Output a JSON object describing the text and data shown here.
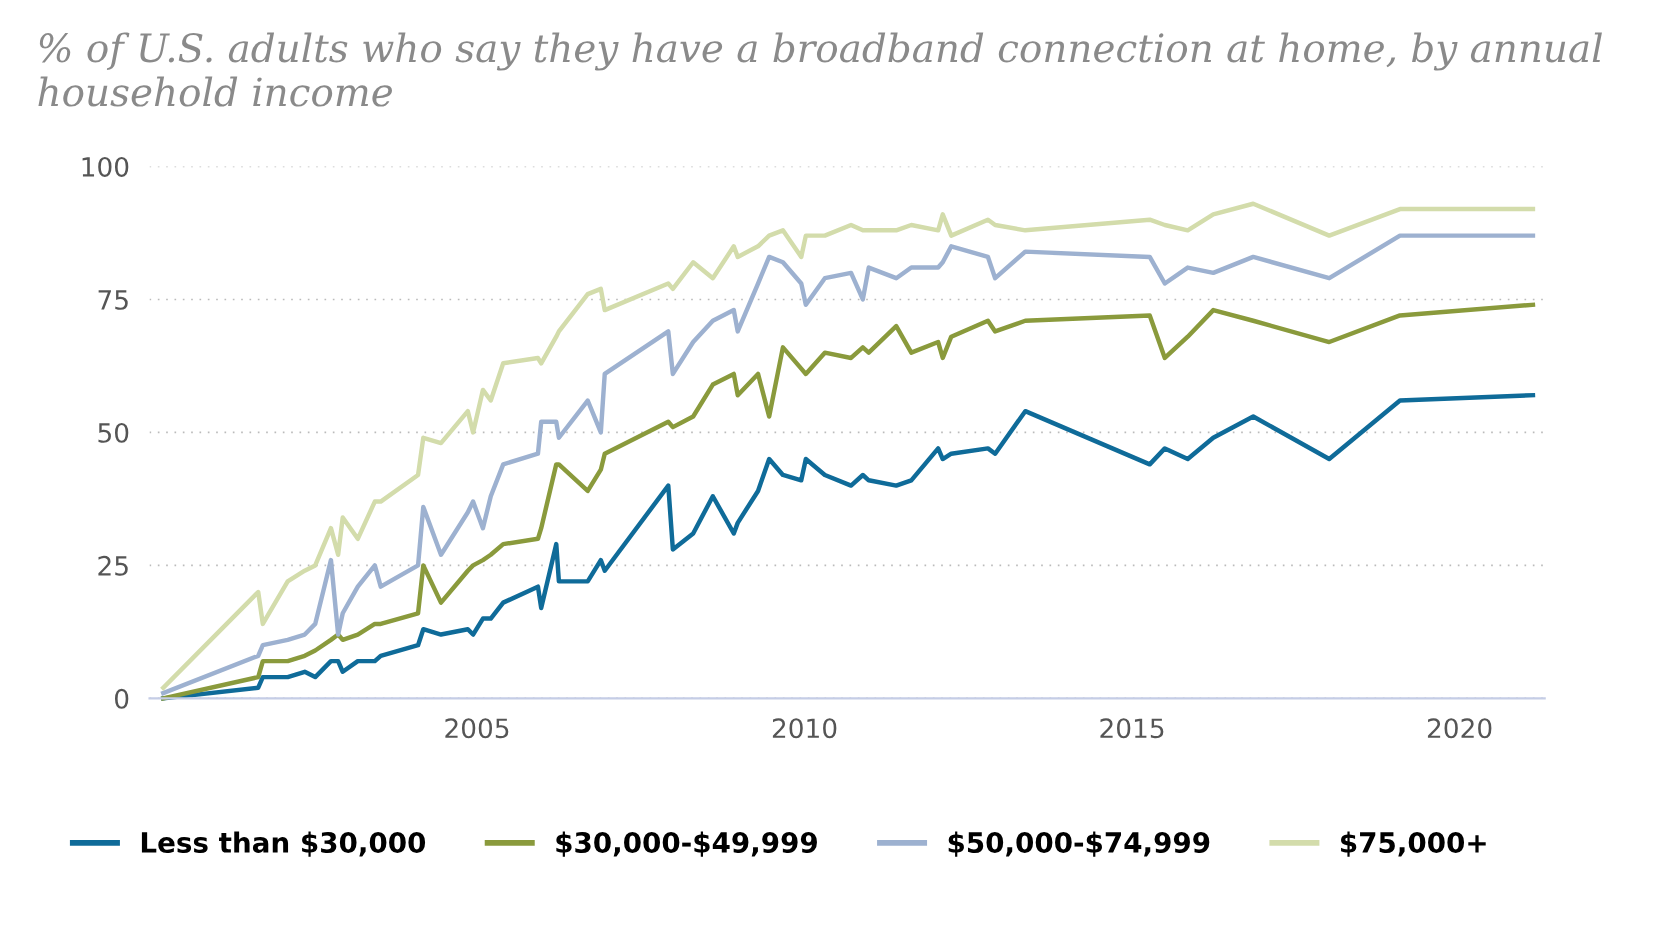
{
  "chart_data": {
    "type": "line",
    "title": "% of U.S. adults who say they have a broadband connection at home, by annual household income",
    "x": [
      2000.21,
      2001.66,
      2001.73,
      2002.11,
      2002.37,
      2002.53,
      2002.77,
      2002.88,
      2002.95,
      2003.18,
      2003.44,
      2003.53,
      2004.1,
      2004.18,
      2004.45,
      2004.86,
      2004.94,
      2005.09,
      2005.21,
      2005.4,
      2005.93,
      2005.98,
      2006.21,
      2006.25,
      2006.69,
      2006.89,
      2006.95,
      2007.92,
      2007.99,
      2008.3,
      2008.6,
      2008.92,
      2008.98,
      2009.29,
      2009.46,
      2009.67,
      2009.95,
      2010.02,
      2010.31,
      2010.71,
      2010.89,
      2010.98,
      2011.4,
      2011.63,
      2012.04,
      2012.11,
      2012.24,
      2012.8,
      2012.91,
      2013.37,
      2015.27,
      2015.5,
      2015.85,
      2016.24,
      2016.85,
      2018.01,
      2019.09,
      2021.12
    ],
    "series": [
      {
        "name": "Less than $30,000",
        "color": "#0f6b99",
        "values": [
          0,
          2,
          4,
          4,
          5,
          4,
          7,
          7,
          5,
          7,
          7,
          8,
          10,
          13,
          12,
          13,
          12,
          15,
          15,
          18,
          21,
          17,
          29,
          22,
          22,
          26,
          24,
          40,
          28,
          31,
          38,
          31,
          33,
          39,
          45,
          42,
          41,
          45,
          42,
          40,
          42,
          41,
          40,
          41,
          47,
          45,
          46,
          47,
          46,
          54,
          44,
          47,
          45,
          49,
          53,
          45,
          56,
          57
        ]
      },
      {
        "name": "$30,000-$49,999",
        "color": "#8a9a3c",
        "values": [
          0,
          4,
          7,
          7,
          8,
          9,
          11,
          12,
          11,
          12,
          14,
          14,
          16,
          25,
          18,
          24,
          25,
          26,
          27,
          29,
          30,
          32,
          44,
          44,
          39,
          43,
          46,
          52,
          51,
          53,
          59,
          61,
          57,
          61,
          53,
          66,
          62,
          61,
          65,
          64,
          66,
          65,
          70,
          65,
          67,
          64,
          68,
          71,
          69,
          71,
          72,
          64,
          68,
          73,
          71,
          67,
          72,
          74
        ]
      },
      {
        "name": "$50,000-$74,999",
        "color": "#9db1d0",
        "values": [
          1,
          8,
          10,
          11,
          12,
          14,
          26,
          12,
          16,
          21,
          25,
          21,
          25,
          36,
          27,
          35,
          37,
          32,
          38,
          44,
          46,
          52,
          52,
          49,
          56,
          50,
          61,
          69,
          61,
          67,
          71,
          73,
          69,
          78,
          83,
          82,
          78,
          74,
          79,
          80,
          75,
          81,
          79,
          81,
          81,
          82,
          85,
          83,
          79,
          84,
          83,
          78,
          81,
          80,
          83,
          79,
          87,
          87
        ]
      },
      {
        "name": "$75,000+",
        "color": "#d3dcab",
        "values": [
          2,
          20,
          14,
          22,
          24,
          25,
          32,
          27,
          34,
          30,
          37,
          37,
          42,
          49,
          48,
          54,
          50,
          58,
          56,
          63,
          64,
          63,
          68,
          69,
          76,
          77,
          73,
          78,
          77,
          82,
          79,
          85,
          83,
          85,
          87,
          88,
          83,
          87,
          87,
          89,
          88,
          88,
          88,
          89,
          88,
          91,
          87,
          90,
          89,
          88,
          90,
          89,
          88,
          91,
          93,
          87,
          92,
          92
        ]
      }
    ],
    "xlim": [
      2000,
      2021.3
    ],
    "xticks": [
      2005,
      2010,
      2015,
      2020
    ],
    "ylim": [
      0,
      100
    ],
    "yticks": [
      0,
      25,
      50,
      75,
      100
    ],
    "grid": "y",
    "legend": "bottom",
    "line_style": "solid"
  }
}
